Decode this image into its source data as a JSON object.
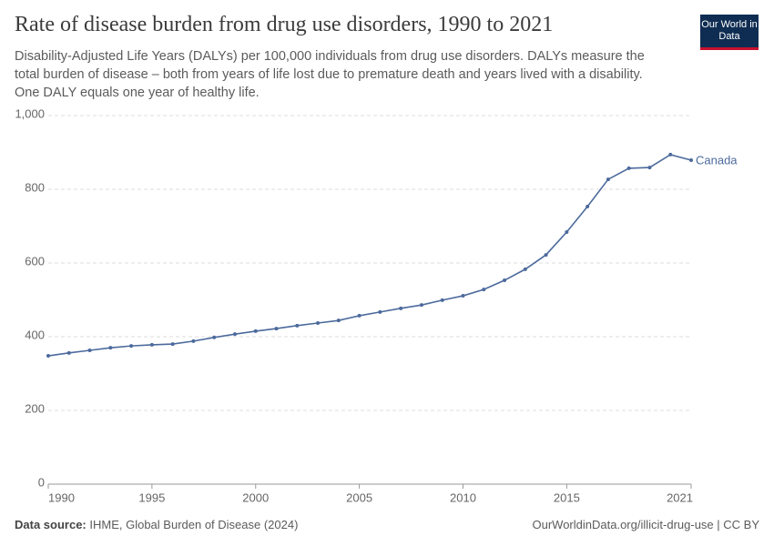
{
  "chart_data": {
    "type": "line",
    "title": "Rate of disease burden from drug use disorders, 1990 to 2021",
    "subtitle": "Disability-Adjusted Life Years (DALYs) per 100,000 individuals from drug use disorders. DALYs measure the total burden of disease – both from years of life lost due to premature death and years lived with a disability. One DALY equals one year of healthy life.",
    "logo": "Our World in Data",
    "source_label": "Data source:",
    "source": "IHME, Global Burden of Disease (2024)",
    "url": "OurWorldinData.org/illicit-drug-use | CC BY",
    "x": [
      1990,
      1991,
      1992,
      1993,
      1994,
      1995,
      1996,
      1997,
      1998,
      1999,
      2000,
      2001,
      2002,
      2003,
      2004,
      2005,
      2006,
      2007,
      2008,
      2009,
      2010,
      2011,
      2012,
      2013,
      2014,
      2015,
      2016,
      2017,
      2018,
      2019,
      2020,
      2021
    ],
    "series": [
      {
        "name": "Canada",
        "color": "#4c6a9c",
        "values": [
          348,
          356,
          363,
          370,
          375,
          378,
          380,
          388,
          398,
          407,
          415,
          422,
          430,
          437,
          444,
          457,
          467,
          477,
          486,
          499,
          511,
          528,
          553,
          583,
          622,
          684,
          753,
          827,
          857,
          859,
          894,
          879
        ]
      }
    ],
    "xlim": [
      1990,
      2021
    ],
    "xticks": [
      1990,
      1995,
      2000,
      2005,
      2010,
      2015,
      2021
    ],
    "ylim": [
      0,
      1000
    ],
    "yticks": [
      0,
      200,
      400,
      600,
      800,
      {
        "value": 1000,
        "label": "1,000"
      }
    ],
    "grid": true
  }
}
